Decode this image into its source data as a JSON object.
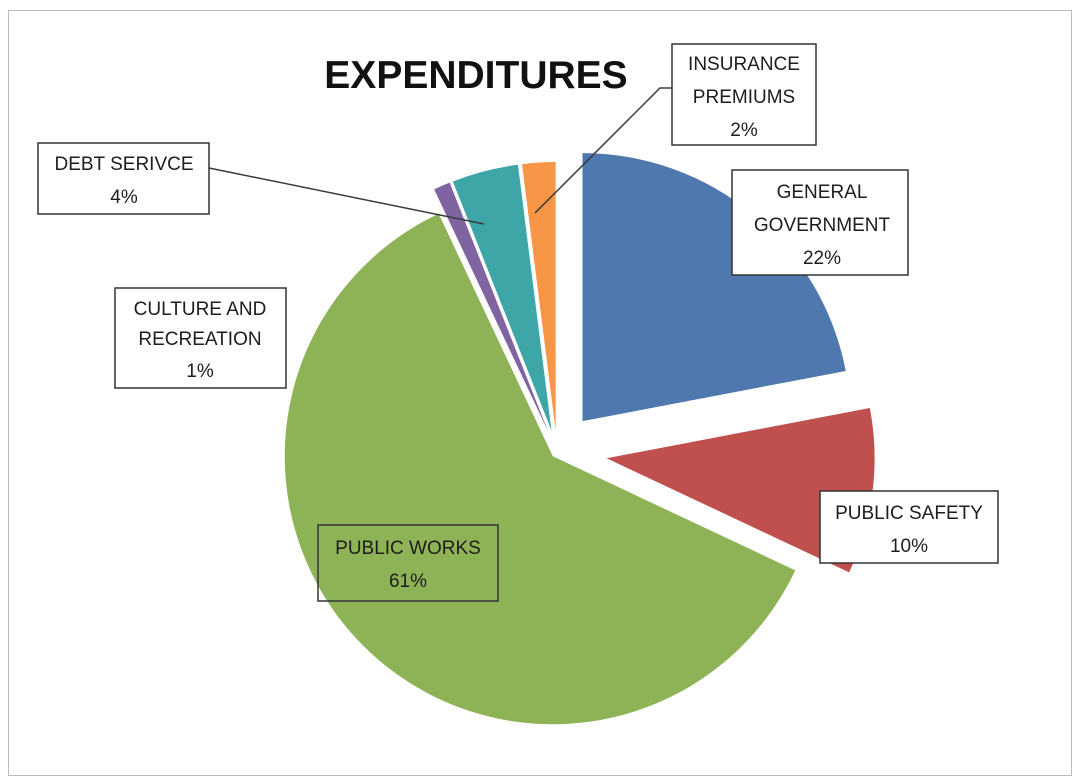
{
  "chart_data": {
    "type": "pie",
    "title": "EXPENDITURES",
    "slices": [
      {
        "category": "GENERAL GOVERNMENT",
        "value": 22,
        "label_lines": [
          "GENERAL",
          "GOVERNMENT",
          "22%"
        ],
        "color": "#4F79AE"
      },
      {
        "category": "PUBLIC SAFETY",
        "value": 10,
        "label_lines": [
          "PUBLIC SAFETY",
          "10%"
        ],
        "color": "#C0504D"
      },
      {
        "category": "PUBLIC WORKS",
        "value": 61,
        "label_lines": [
          "PUBLIC WORKS",
          "61%"
        ],
        "color": "#8DB356"
      },
      {
        "category": "CULTURE AND RECREATION",
        "value": 1,
        "label_lines": [
          "CULTURE AND",
          "RECREATION",
          "1%"
        ],
        "color": "#8064A2"
      },
      {
        "category": "DEBT SERIVCE",
        "value": 4,
        "label_lines": [
          "DEBT SERIVCE",
          "4%"
        ],
        "color": "#3FA6A8"
      },
      {
        "category": "INSURANCE PREMIUMS",
        "value": 2,
        "label_lines": [
          "INSURANCE",
          "PREMIUMS",
          "2%"
        ],
        "color": "#F79646"
      }
    ],
    "exploded": true,
    "legend": "none",
    "data_labels": "category and percentage in boxes"
  }
}
